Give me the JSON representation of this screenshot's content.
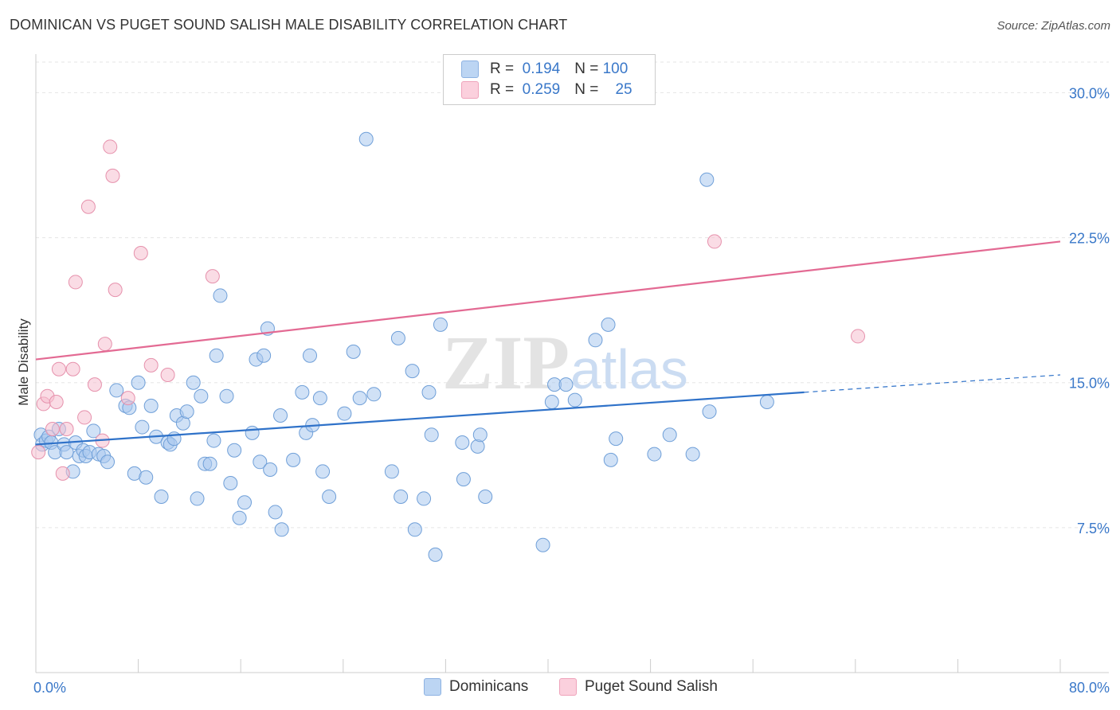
{
  "header": {
    "title": "DOMINICAN VS PUGET SOUND SALISH MALE DISABILITY CORRELATION CHART",
    "source": "Source: ZipAtlas.com"
  },
  "watermark": {
    "zip": "ZIP",
    "atlas": "atlas"
  },
  "legend": {
    "r_label": "R =",
    "n_label": "N =",
    "rows": [
      {
        "r": "0.194",
        "n": "100",
        "color": "#a9c8ee"
      },
      {
        "r": "0.259",
        "n": "25",
        "color": "#f6b6c8"
      }
    ]
  },
  "bottom_legend": [
    {
      "label": "Dominicans",
      "color": "#a9c8ee"
    },
    {
      "label": "Puget Sound Salish",
      "color": "#f6b6c8"
    }
  ],
  "colors": {
    "blue_fill": "#a9c8ee",
    "blue_stroke": "#6f9fd8",
    "blue_line": "#2f72c9",
    "pink_fill": "#f6bfd0",
    "pink_stroke": "#e691ac",
    "pink_line": "#e36a93",
    "tick_label": "#3a78c9"
  },
  "chart_data": {
    "type": "scatter",
    "title": "DOMINICAN VS PUGET SOUND SALISH MALE DISABILITY CORRELATION CHART",
    "xlabel": "",
    "ylabel": "Male Disability",
    "xlim": [
      0,
      80
    ],
    "ylim": [
      0,
      31.5
    ],
    "x_tick_labels": [
      "0.0%",
      "80.0%"
    ],
    "y_ticks": [
      7.5,
      15.0,
      22.5,
      30.0
    ],
    "y_tick_labels": [
      "7.5%",
      "15.0%",
      "22.5%",
      "30.0%"
    ],
    "grid": "horizontal dashed",
    "legend_position": "top-center",
    "series": [
      {
        "name": "Dominicans",
        "r": 0.194,
        "n": 100,
        "trend": {
          "x0": 0,
          "y0": 11.8,
          "x1": 60,
          "y1": 14.5,
          "dashed_to_x": 80,
          "dashed_to_y": 15.4
        },
        "points": [
          [
            0.4,
            12.3
          ],
          [
            0.5,
            11.8
          ],
          [
            0.8,
            12.0
          ],
          [
            1.0,
            12.2
          ],
          [
            1.2,
            11.9
          ],
          [
            1.5,
            11.4
          ],
          [
            1.8,
            12.6
          ],
          [
            2.2,
            11.8
          ],
          [
            2.4,
            11.4
          ],
          [
            2.9,
            10.4
          ],
          [
            3.1,
            11.9
          ],
          [
            3.4,
            11.2
          ],
          [
            3.7,
            11.5
          ],
          [
            3.9,
            11.2
          ],
          [
            4.2,
            11.4
          ],
          [
            4.5,
            12.5
          ],
          [
            4.9,
            11.3
          ],
          [
            5.3,
            11.2
          ],
          [
            5.6,
            10.9
          ],
          [
            6.3,
            14.6
          ],
          [
            7.0,
            13.8
          ],
          [
            7.3,
            13.7
          ],
          [
            7.7,
            10.3
          ],
          [
            8.0,
            15.0
          ],
          [
            8.3,
            12.7
          ],
          [
            8.6,
            10.1
          ],
          [
            9.0,
            13.8
          ],
          [
            9.4,
            12.2
          ],
          [
            9.8,
            9.1
          ],
          [
            10.3,
            11.9
          ],
          [
            10.5,
            11.8
          ],
          [
            10.8,
            12.1
          ],
          [
            11.0,
            13.3
          ],
          [
            11.5,
            12.9
          ],
          [
            11.8,
            13.5
          ],
          [
            12.3,
            15.0
          ],
          [
            12.6,
            9.0
          ],
          [
            12.9,
            14.3
          ],
          [
            13.2,
            10.8
          ],
          [
            13.6,
            10.8
          ],
          [
            13.9,
            12.0
          ],
          [
            14.1,
            16.4
          ],
          [
            14.4,
            19.5
          ],
          [
            14.9,
            14.3
          ],
          [
            15.2,
            9.8
          ],
          [
            15.5,
            11.5
          ],
          [
            15.9,
            8.0
          ],
          [
            16.3,
            8.8
          ],
          [
            16.9,
            12.4
          ],
          [
            17.2,
            16.2
          ],
          [
            17.5,
            10.9
          ],
          [
            17.8,
            16.4
          ],
          [
            18.1,
            17.8
          ],
          [
            18.3,
            10.5
          ],
          [
            18.7,
            8.3
          ],
          [
            19.1,
            13.3
          ],
          [
            19.2,
            7.4
          ],
          [
            20.1,
            11.0
          ],
          [
            20.8,
            14.5
          ],
          [
            21.1,
            12.4
          ],
          [
            21.4,
            16.4
          ],
          [
            21.6,
            12.8
          ],
          [
            22.2,
            14.2
          ],
          [
            22.4,
            10.4
          ],
          [
            22.9,
            9.1
          ],
          [
            24.1,
            13.4
          ],
          [
            24.8,
            16.6
          ],
          [
            25.3,
            14.2
          ],
          [
            25.8,
            27.6
          ],
          [
            26.4,
            14.4
          ],
          [
            27.8,
            10.4
          ],
          [
            28.3,
            17.3
          ],
          [
            28.5,
            9.1
          ],
          [
            29.4,
            15.6
          ],
          [
            29.6,
            7.4
          ],
          [
            30.3,
            9.0
          ],
          [
            30.7,
            14.5
          ],
          [
            30.9,
            12.3
          ],
          [
            31.2,
            6.1
          ],
          [
            31.6,
            18.0
          ],
          [
            33.3,
            11.9
          ],
          [
            33.4,
            10.0
          ],
          [
            34.5,
            11.7
          ],
          [
            34.7,
            12.3
          ],
          [
            35.1,
            9.1
          ],
          [
            39.6,
            6.6
          ],
          [
            40.3,
            14.0
          ],
          [
            40.5,
            14.9
          ],
          [
            41.4,
            14.9
          ],
          [
            42.1,
            14.1
          ],
          [
            43.7,
            17.2
          ],
          [
            44.7,
            18.0
          ],
          [
            44.9,
            11.0
          ],
          [
            45.3,
            12.1
          ],
          [
            48.3,
            11.3
          ],
          [
            49.5,
            12.3
          ],
          [
            51.3,
            11.3
          ],
          [
            52.4,
            25.5
          ],
          [
            52.6,
            13.5
          ],
          [
            57.1,
            14.0
          ]
        ]
      },
      {
        "name": "Puget Sound Salish",
        "r": 0.259,
        "n": 25,
        "trend": {
          "x0": 0,
          "y0": 16.2,
          "x1": 80,
          "y1": 22.3
        },
        "points": [
          [
            0.2,
            11.4
          ],
          [
            0.6,
            13.9
          ],
          [
            0.9,
            14.3
          ],
          [
            1.3,
            12.6
          ],
          [
            1.6,
            14.0
          ],
          [
            1.8,
            15.7
          ],
          [
            2.1,
            10.3
          ],
          [
            2.4,
            12.6
          ],
          [
            2.9,
            15.7
          ],
          [
            3.1,
            20.2
          ],
          [
            3.8,
            13.2
          ],
          [
            4.1,
            24.1
          ],
          [
            4.6,
            14.9
          ],
          [
            5.2,
            12.0
          ],
          [
            5.4,
            17.0
          ],
          [
            5.8,
            27.2
          ],
          [
            6.0,
            25.7
          ],
          [
            6.2,
            19.8
          ],
          [
            7.2,
            14.2
          ],
          [
            8.2,
            21.7
          ],
          [
            9.0,
            15.9
          ],
          [
            10.3,
            15.4
          ],
          [
            13.8,
            20.5
          ],
          [
            53.0,
            22.3
          ],
          [
            64.2,
            17.4
          ]
        ]
      }
    ]
  }
}
